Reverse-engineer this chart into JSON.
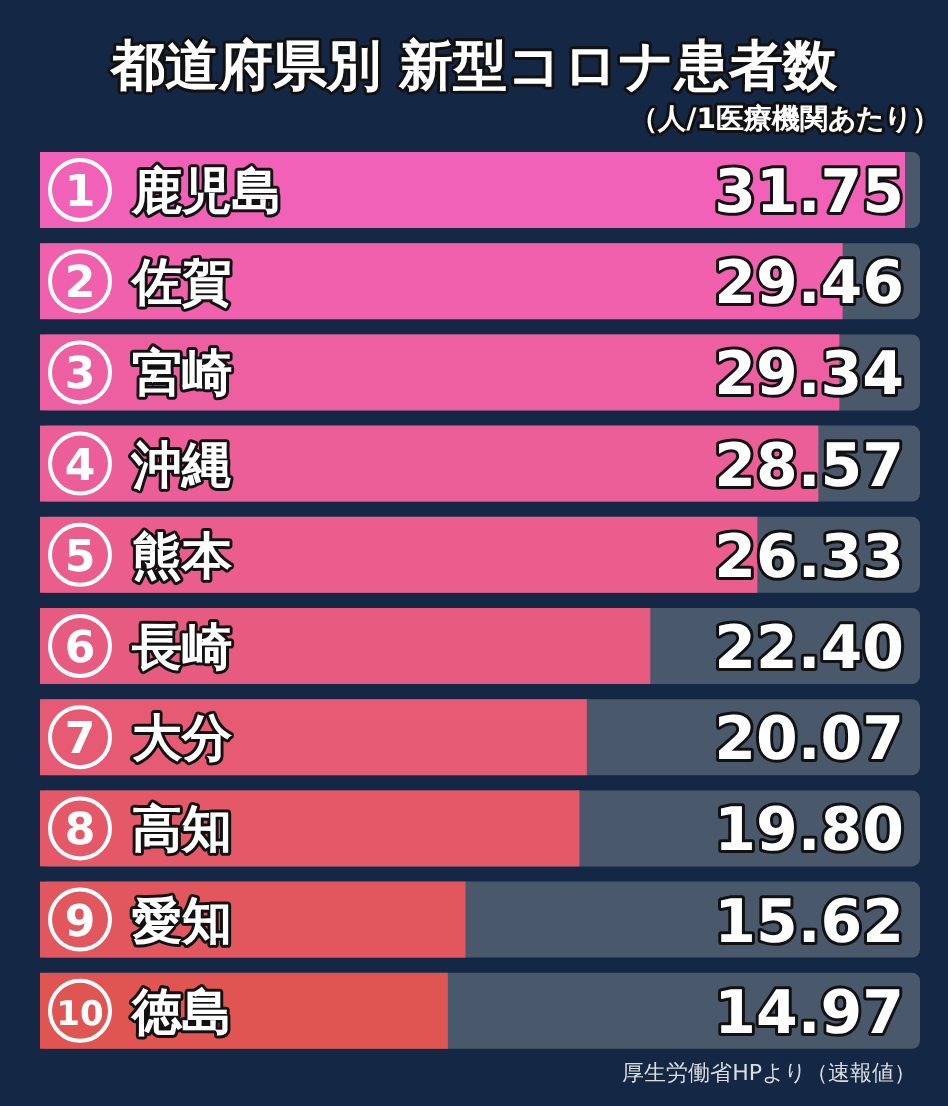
{
  "chart_data": {
    "type": "bar",
    "orientation": "horizontal",
    "title": "都道府県別 新型コロナ患者数",
    "subtitle": "（人/1医療機関あたり）",
    "categories": [
      "鹿児島",
      "佐賀",
      "宮崎",
      "沖縄",
      "熊本",
      "長崎",
      "大分",
      "高知",
      "愛知",
      "徳島"
    ],
    "values": [
      31.75,
      29.46,
      29.34,
      28.57,
      26.33,
      22.4,
      20.07,
      19.8,
      15.62,
      14.97
    ],
    "colors": [
      "#f261b8",
      "#f060ac",
      "#ee5fa2",
      "#ec5e98",
      "#ea5d8c",
      "#e85b80",
      "#e65a74",
      "#e45868",
      "#e2575e",
      "#e05552"
    ],
    "xlim": [
      0,
      32.3
    ],
    "value_labels": [
      "31.75",
      "29.46",
      "29.34",
      "28.57",
      "26.33",
      "22.40",
      "20.07",
      "19.80",
      "15.62",
      "14.97"
    ],
    "annotations": [
      {
        "text": "1",
        "y": "鹿児島"
      },
      {
        "text": "2",
        "y": "佐賀"
      },
      {
        "text": "3",
        "y": "宮崎"
      },
      {
        "text": "4",
        "y": "沖縄"
      },
      {
        "text": "5",
        "y": "熊本"
      },
      {
        "text": "6",
        "y": "長崎"
      },
      {
        "text": "7",
        "y": "大分"
      },
      {
        "text": "8",
        "y": "高知"
      },
      {
        "text": "9",
        "y": "愛知"
      },
      {
        "text": "10",
        "y": "徳島"
      },
      "厚生労働省HPより（速報値）"
    ]
  }
}
